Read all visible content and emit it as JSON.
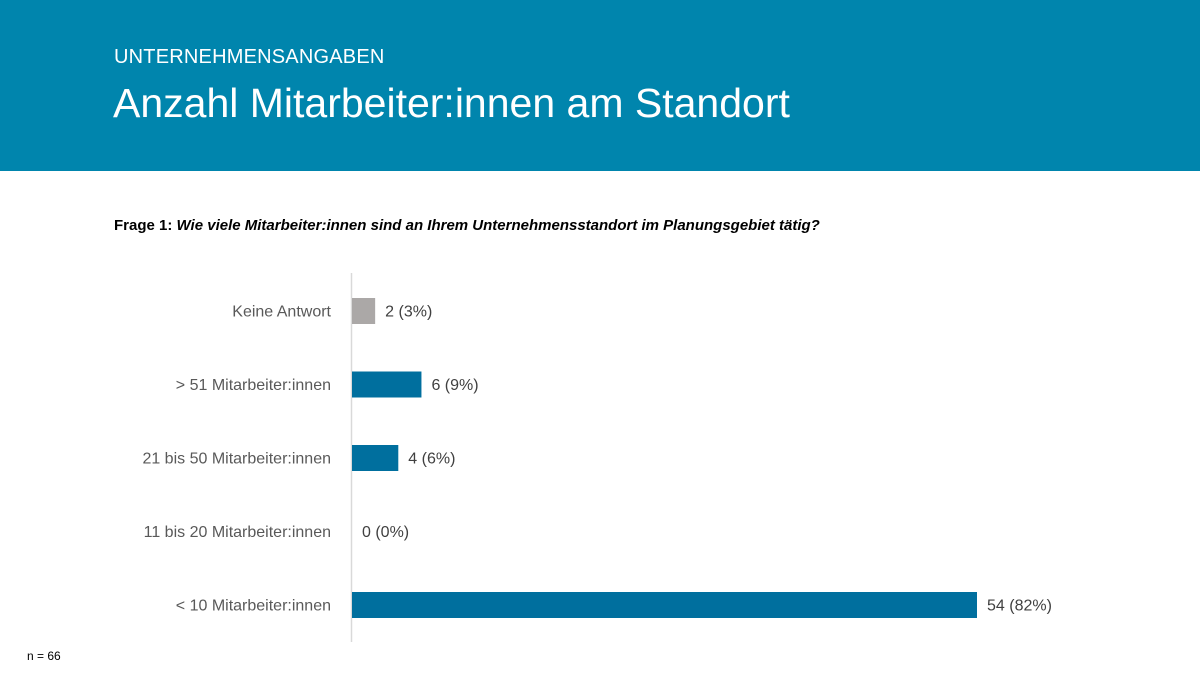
{
  "header": {
    "kicker": "UNTERNEHMENSANGABEN",
    "title": "Anzahl Mitarbeiter:innen am Standort"
  },
  "question": {
    "label": "Frage 1:",
    "text": "Wie viele Mitarbeiter:innen sind an Ihrem Unternehmensstandort im Planungsgebiet tätig?"
  },
  "footnote": "n = 66",
  "chart_data": {
    "type": "bar",
    "orientation": "horizontal",
    "categories": [
      "Keine Antwort",
      "> 51 Mitarbeiter:innen",
      "21 bis 50 Mitarbeiter:innen",
      "11 bis 20 Mitarbeiter:innen",
      "< 10 Mitarbeiter:innen"
    ],
    "values": [
      2,
      6,
      4,
      0,
      54
    ],
    "percent": [
      3,
      9,
      6,
      0,
      82
    ],
    "data_labels": [
      "2 (3%)",
      "6 (9%)",
      "4 (6%)",
      "0 (0%)",
      "54 (82%)"
    ],
    "colors": [
      "#aba8a7",
      "#006f9e",
      "#006f9e",
      "#006f9e",
      "#006f9e"
    ],
    "grid": false
  }
}
